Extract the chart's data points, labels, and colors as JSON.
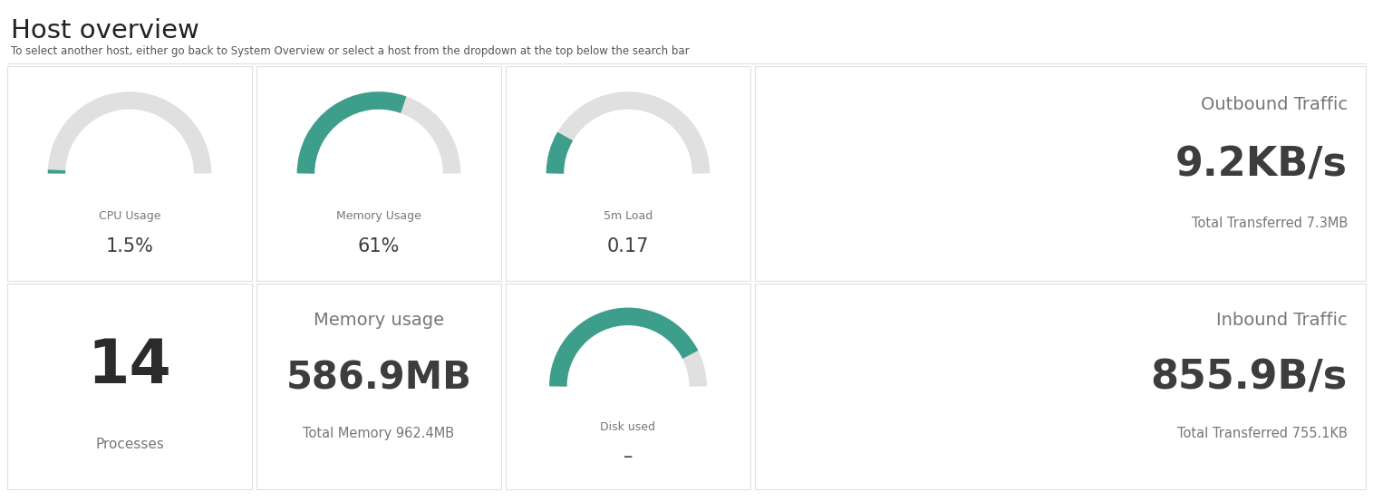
{
  "title": "Host overview",
  "subtitle_before": "To select another host, either go back to ",
  "subtitle_link": "System Overview",
  "subtitle_after": " or select a host from the dropdown at the top below the search bar",
  "bg_color": "#ffffff",
  "border_color": "#e0e0e0",
  "teal_color": "#3d9e8c",
  "gray_color": "#e0e0e0",
  "text_dark": "#3d3d3d",
  "text_medium": "#777777",
  "panels": [
    {
      "type": "gauge",
      "title": "CPU Usage",
      "value": "1.5%",
      "pct": 0.015,
      "row": 0,
      "col": 0
    },
    {
      "type": "gauge",
      "title": "Memory Usage",
      "value": "61%",
      "pct": 0.61,
      "row": 0,
      "col": 1
    },
    {
      "type": "gauge",
      "title": "5m Load",
      "value": "0.17",
      "pct": 0.17,
      "row": 0,
      "col": 2
    },
    {
      "type": "stat",
      "title": "Outbound Traffic",
      "value": "9.2KB/s",
      "subtitle": "Total Transferred 7.3MB",
      "row": 0,
      "col": 3
    },
    {
      "type": "number",
      "title": "Processes",
      "value": "14",
      "row": 1,
      "col": 0
    },
    {
      "type": "stat2",
      "title": "Memory usage",
      "value": "586.9MB",
      "subtitle": "Total Memory 962.4MB",
      "row": 1,
      "col": 1
    },
    {
      "type": "gauge",
      "title": "Disk used",
      "value": "–",
      "pct": 0.85,
      "row": 1,
      "col": 2
    },
    {
      "type": "stat",
      "title": "Inbound Traffic",
      "value": "855.9B/s",
      "subtitle": "Total Transferred 755.1KB",
      "row": 1,
      "col": 3
    }
  ]
}
